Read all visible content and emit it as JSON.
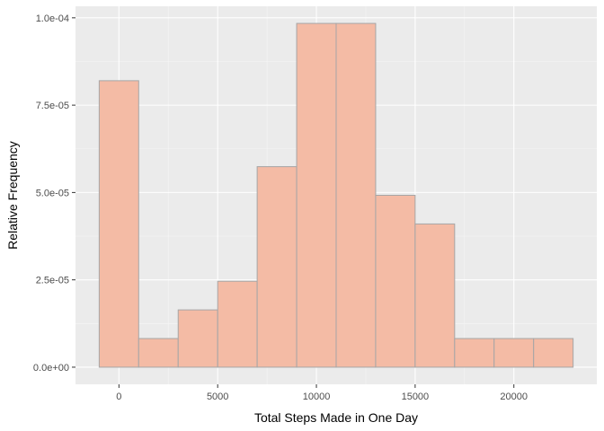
{
  "chart_data": {
    "type": "bar",
    "histogram": true,
    "title": "",
    "xlabel": "Total Steps Made in One Day",
    "ylabel": "Relative Frequency",
    "bins": [
      {
        "x0": -1000,
        "x1": 1000,
        "value": 8.2e-05
      },
      {
        "x0": 1000,
        "x1": 3000,
        "value": 8.2e-06
      },
      {
        "x0": 3000,
        "x1": 5000,
        "value": 1.64e-05
      },
      {
        "x0": 5000,
        "x1": 7000,
        "value": 2.46e-05
      },
      {
        "x0": 7000,
        "x1": 9000,
        "value": 5.74e-05
      },
      {
        "x0": 9000,
        "x1": 11000,
        "value": 9.84e-05
      },
      {
        "x0": 11000,
        "x1": 13000,
        "value": 9.84e-05
      },
      {
        "x0": 13000,
        "x1": 15000,
        "value": 4.92e-05
      },
      {
        "x0": 15000,
        "x1": 17000,
        "value": 4.1e-05
      },
      {
        "x0": 17000,
        "x1": 19000,
        "value": 8.2e-06
      },
      {
        "x0": 19000,
        "x1": 21000,
        "value": 8.2e-06
      },
      {
        "x0": 21000,
        "x1": 23000,
        "value": 8.2e-06
      }
    ],
    "xlim": [
      -2200,
      24200
    ],
    "ylim": [
      -4.9e-06,
      0.0001033
    ],
    "x_ticks": [
      {
        "value": 0,
        "label": "0"
      },
      {
        "value": 5000,
        "label": "5000"
      },
      {
        "value": 10000,
        "label": "10000"
      },
      {
        "value": 15000,
        "label": "15000"
      },
      {
        "value": 20000,
        "label": "20000"
      }
    ],
    "y_ticks": [
      {
        "value": 0,
        "label": "0.0e+00"
      },
      {
        "value": 2.5e-05,
        "label": "2.5e-05"
      },
      {
        "value": 5e-05,
        "label": "5.0e-05"
      },
      {
        "value": 7.5e-05,
        "label": "7.5e-05"
      },
      {
        "value": 0.0001,
        "label": "1.0e-04"
      }
    ],
    "grid": true,
    "legend": "none",
    "colors": {
      "panel_background": "#ebebeb",
      "grid_major": "#ffffff",
      "grid_minor": "#f5f5f5",
      "bar_fill": "#f4bba5",
      "bar_stroke": "#a6a6a6",
      "tick_mark": "#333333"
    }
  }
}
